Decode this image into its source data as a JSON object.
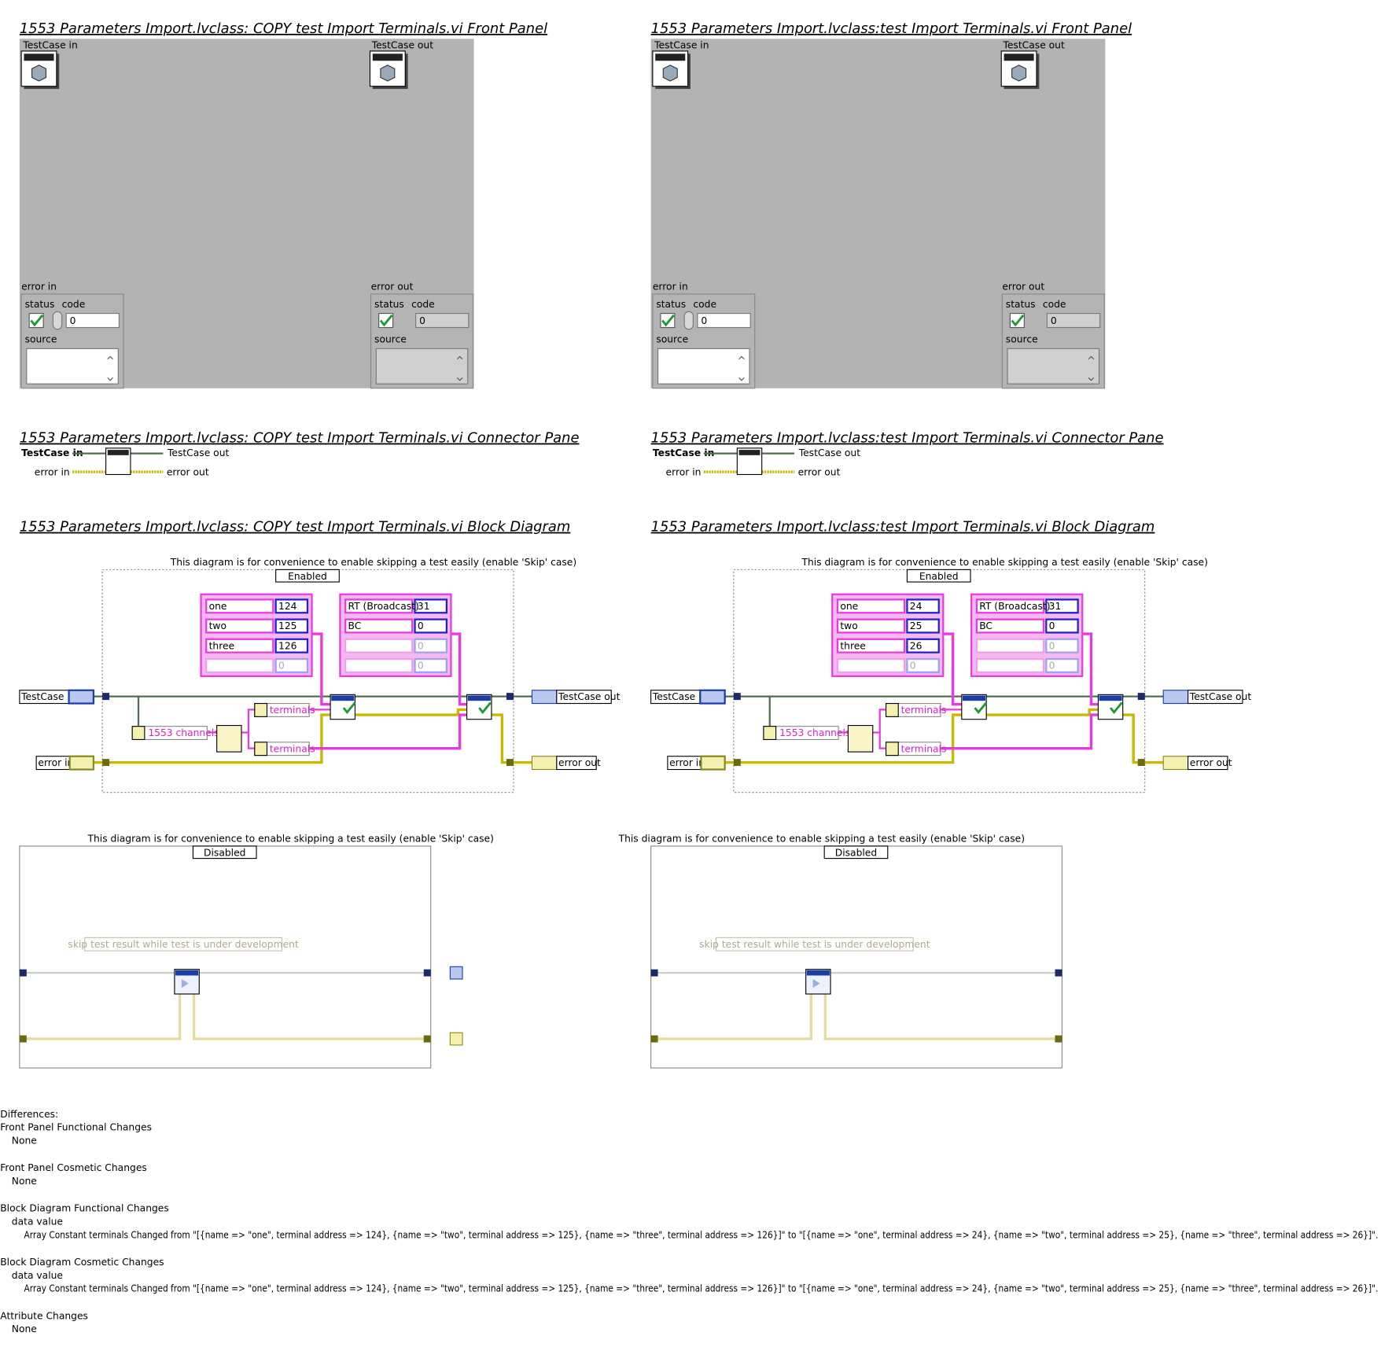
{
  "panels": [
    {
      "front_panel": {
        "title": "1553 Parameters Import.lvclass:  COPY  test Import Terminals.vi Front Panel",
        "testcase_in": "TestCase in",
        "testcase_out": "TestCase out",
        "error_in": {
          "label": "error in",
          "status": "status",
          "code": "code",
          "code_value": "0",
          "source": "source"
        },
        "error_out": {
          "label": "error out",
          "status": "status",
          "code": "code",
          "code_value": "0",
          "source": "source"
        }
      },
      "connector_pane": {
        "title": "1553 Parameters Import.lvclass:  COPY  test Import Terminals.vi Connector Pane",
        "testcase_in": "TestCase in",
        "testcase_out": "TestCase out",
        "error_in": "error in",
        "error_out": "error out"
      },
      "block_diagram": {
        "title": "1553 Parameters Import.lvclass:  COPY  test Import Terminals.vi Block Diagram",
        "comment": "This diagram is for convenience to enable skipping a test easily (enable 'Skip' case)",
        "case": "Enabled",
        "terminals_array": [
          {
            "name": "one",
            "address": "124"
          },
          {
            "name": "two",
            "address": "125"
          },
          {
            "name": "three",
            "address": "126"
          },
          {
            "address": "0"
          }
        ],
        "channels_array": [
          {
            "name": "RT (Broadcast)",
            "address": "31"
          },
          {
            "name": "BC",
            "address": "0"
          },
          {
            "address": "0"
          },
          {
            "address": "0"
          }
        ],
        "testcase_in": "TestCase in",
        "testcase_out": "TestCase out",
        "error_in": "error in",
        "error_out": "error out",
        "channels_constant": "1553 channels",
        "terminals_label_1": "terminals",
        "terminals_label_2": "terminals"
      },
      "disabled_case": {
        "comment": "This diagram is for convenience to enable skipping a test easily (enable 'Skip' case)",
        "case": "Disabled",
        "note": "skip test result while test is under development"
      }
    },
    {
      "front_panel": {
        "title": "1553 Parameters Import.lvclass:test Import Terminals.vi Front Panel",
        "testcase_in": "TestCase in",
        "testcase_out": "TestCase out",
        "error_in": {
          "label": "error in",
          "status": "status",
          "code": "code",
          "code_value": "0",
          "source": "source"
        },
        "error_out": {
          "label": "error out",
          "status": "status",
          "code": "code",
          "code_value": "0",
          "source": "source"
        }
      },
      "connector_pane": {
        "title": "1553 Parameters Import.lvclass:test Import Terminals.vi Connector Pane",
        "testcase_in": "TestCase in",
        "testcase_out": "TestCase out",
        "error_in": "error in",
        "error_out": "error out"
      },
      "block_diagram": {
        "title": "1553 Parameters Import.lvclass:test Import Terminals.vi Block Diagram",
        "comment": "This diagram is for convenience to enable skipping a test easily (enable 'Skip' case)",
        "case": "Enabled",
        "terminals_array": [
          {
            "name": "one",
            "address": "24"
          },
          {
            "name": "two",
            "address": "25"
          },
          {
            "name": "three",
            "address": "26"
          },
          {
            "address": "0"
          }
        ],
        "channels_array": [
          {
            "name": "RT (Broadcast)",
            "address": "31"
          },
          {
            "name": "BC",
            "address": "0"
          },
          {
            "address": "0"
          },
          {
            "address": "0"
          }
        ],
        "testcase_in": "TestCase in",
        "testcase_out": "TestCase out",
        "error_in": "error in",
        "error_out": "error out",
        "channels_constant": "1553 channels",
        "terminals_label_1": "terminals",
        "terminals_label_2": "terminals"
      },
      "disabled_case": {
        "comment": "This diagram is for convenience to enable skipping a test easily (enable 'Skip' case)",
        "case": "Disabled",
        "note": "skip test result while test is under development"
      }
    }
  ],
  "differences": {
    "heading": "Differences:",
    "sections": [
      {
        "title": "Front Panel Functional Changes",
        "items": [
          "None"
        ]
      },
      {
        "title": "Front Panel Cosmetic Changes",
        "items": [
          "None"
        ]
      },
      {
        "title": "Block Diagram Functional Changes",
        "groups": [
          {
            "name": "data value",
            "items": [
              "Array Constant terminals Changed from \"[{name => \"one\", terminal address => 124}, {name => \"two\", terminal address => 125}, {name => \"three\", terminal address => 126}]\" to \"[{name => \"one\", terminal address => 24}, {name => \"two\", terminal address => 25}, {name => \"three\", terminal address => 26}]\"."
            ]
          }
        ]
      },
      {
        "title": "Block Diagram Cosmetic Changes",
        "groups": [
          {
            "name": "data value",
            "items": [
              "Array Constant terminals Changed from \"[{name => \"one\", terminal address => 124}, {name => \"two\", terminal address => 125}, {name => \"three\", terminal address => 126}]\" to \"[{name => \"one\", terminal address => 24}, {name => \"two\", terminal address => 25}, {name => \"three\", terminal address => 26}]\"."
            ]
          }
        ]
      },
      {
        "title": "Attribute Changes",
        "items": [
          "None"
        ]
      }
    ]
  }
}
